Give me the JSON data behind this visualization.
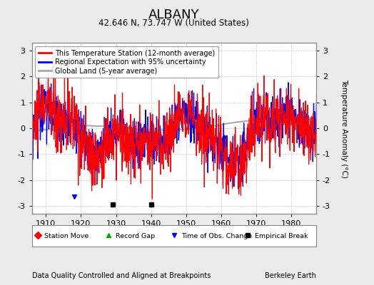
{
  "title": "ALBANY",
  "subtitle": "42.646 N, 73.747 W (United States)",
  "x_ticks": [
    1910,
    1920,
    1930,
    1940,
    1950,
    1960,
    1970,
    1980
  ],
  "y_ticks": [
    -3,
    -2,
    -1,
    0,
    1,
    2,
    3
  ],
  "ylim": [
    -3.3,
    3.3
  ],
  "xlim": [
    1906,
    1987
  ],
  "ylabel": "Temperature Anomaly (°C)",
  "footer_left": "Data Quality Controlled and Aligned at Breakpoints",
  "footer_right": "Berkeley Earth",
  "legend_entries": [
    "This Temperature Station (12-month average)",
    "Regional Expectation with 95% uncertainty",
    "Global Land (5-year average)"
  ],
  "station_color": "#FF0000",
  "regional_color": "#0000EE",
  "regional_fill_color": "#BBBBFF",
  "global_color": "#AAAAAA",
  "background_color": "#EBEBEB",
  "plot_bg_color": "#FFFFFF",
  "marker_events": {
    "empirical_breaks": [
      1929,
      1940
    ],
    "station_moves": [],
    "record_gaps": [],
    "time_of_obs": [
      1918
    ]
  }
}
